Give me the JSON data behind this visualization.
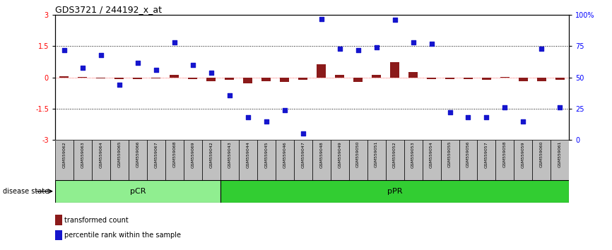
{
  "title": "GDS3721 / 244192_x_at",
  "samples": [
    "GSM559062",
    "GSM559063",
    "GSM559064",
    "GSM559065",
    "GSM559066",
    "GSM559067",
    "GSM559068",
    "GSM559069",
    "GSM559042",
    "GSM559043",
    "GSM559044",
    "GSM559045",
    "GSM559046",
    "GSM559047",
    "GSM559048",
    "GSM559049",
    "GSM559050",
    "GSM559051",
    "GSM559052",
    "GSM559053",
    "GSM559054",
    "GSM559055",
    "GSM559056",
    "GSM559057",
    "GSM559058",
    "GSM559059",
    "GSM559060",
    "GSM559061"
  ],
  "transformed_count": [
    0.05,
    0.04,
    -0.04,
    -0.08,
    -0.08,
    -0.04,
    0.12,
    -0.08,
    -0.18,
    -0.12,
    -0.28,
    -0.18,
    -0.22,
    -0.12,
    0.65,
    0.12,
    -0.22,
    0.12,
    0.75,
    0.25,
    -0.08,
    -0.08,
    -0.08,
    -0.12,
    0.04,
    -0.18,
    -0.18,
    -0.12
  ],
  "percentile_rank_pct": [
    72,
    58,
    68,
    44,
    62,
    56,
    78,
    60,
    54,
    36,
    18,
    15,
    24,
    5,
    97,
    73,
    72,
    74,
    96,
    78,
    77,
    22,
    18,
    18,
    26,
    15,
    73,
    26
  ],
  "pCR_count": 9,
  "pPR_count": 19,
  "ylim": [
    -3,
    3
  ],
  "yticks_left": [
    -3,
    -1.5,
    0,
    1.5,
    3
  ],
  "yticks_right_pct": [
    0,
    25,
    50,
    75,
    100
  ],
  "hline_values": [
    1.5,
    -1.5
  ],
  "bar_color": "#8B1A1A",
  "scatter_color": "#1515CD",
  "pCR_color": "#90EE90",
  "pPR_color": "#32CD32",
  "sample_bg_color": "#C0C0C0",
  "legend_bar_label": "transformed count",
  "legend_scatter_label": "percentile rank within the sample",
  "disease_state_label": "disease state"
}
